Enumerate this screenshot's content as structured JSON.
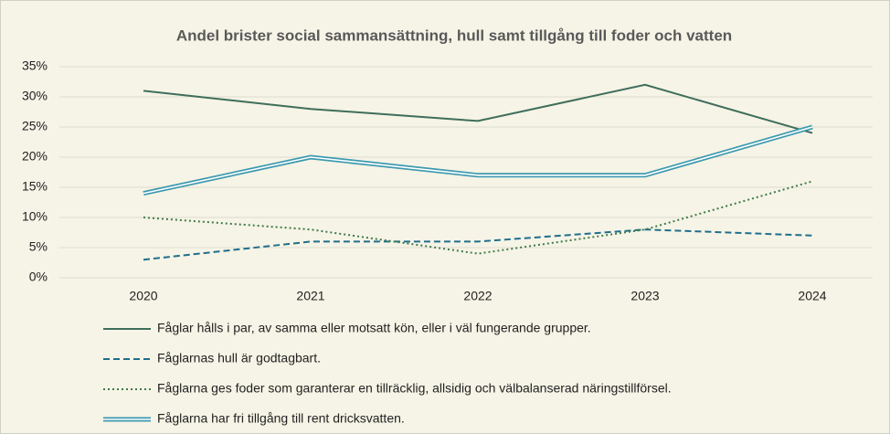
{
  "chart_data": {
    "type": "line",
    "title": "Andel brister social sammansättning, hull samt tillgång till foder och vatten",
    "categories": [
      "2020",
      "2021",
      "2022",
      "2023",
      "2024"
    ],
    "series": [
      {
        "name": "Fåglar hålls i par, av samma eller motsatt kön, eller i väl fungerande grupper.",
        "color": "#3e6e5c",
        "dash": "solid",
        "values": [
          31,
          28,
          26,
          32,
          24
        ]
      },
      {
        "name": "Fåglarnas hull är godtagbart.",
        "color": "#1f6e8c",
        "dash": "dashed",
        "values": [
          3,
          6,
          6,
          8,
          7
        ]
      },
      {
        "name": "Fåglarna ges foder som garanterar en tillräcklig, allsidig och välbalanserad näringstillförsel.",
        "color": "#3f7a4a",
        "dash": "dotted",
        "values": [
          10,
          8,
          4,
          8,
          16
        ]
      },
      {
        "name": "Fåglarna har fri tillgång till rent dricksvatten.",
        "color": "#3d9ab0",
        "dash": "double",
        "values": [
          14,
          20,
          17,
          17,
          25
        ]
      }
    ],
    "ylim": [
      0,
      35
    ],
    "yticks": [
      {
        "value": 0,
        "label": "0%"
      },
      {
        "value": 5,
        "label": "5%"
      },
      {
        "value": 10,
        "label": "10%"
      },
      {
        "value": 15,
        "label": "15%"
      },
      {
        "value": 20,
        "label": "20%"
      },
      {
        "value": 25,
        "label": "25%"
      },
      {
        "value": 30,
        "label": "30%"
      },
      {
        "value": 35,
        "label": "35%"
      }
    ],
    "grid": true
  }
}
